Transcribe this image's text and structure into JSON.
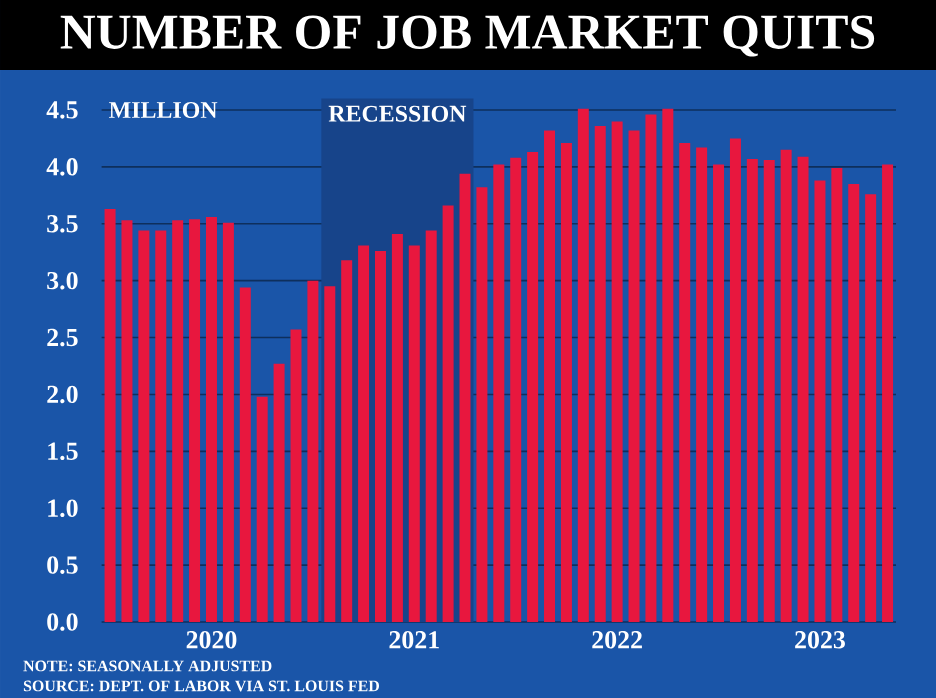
{
  "chart_data": {
    "type": "bar",
    "title": "NUMBER OF JOB MARKET QUITS",
    "ylabel": "MILLION",
    "x": [
      "2019-07",
      "2019-08",
      "2019-09",
      "2019-10",
      "2019-11",
      "2019-12",
      "2020-01",
      "2020-02",
      "2020-03",
      "2020-04",
      "2020-05",
      "2020-06",
      "2020-07",
      "2020-08",
      "2020-09",
      "2020-10",
      "2020-11",
      "2020-12",
      "2021-01",
      "2021-02",
      "2021-03",
      "2021-04",
      "2021-05",
      "2021-06",
      "2021-07",
      "2021-08",
      "2021-09",
      "2021-10",
      "2021-11",
      "2021-12",
      "2022-01",
      "2022-02",
      "2022-03",
      "2022-04",
      "2022-05",
      "2022-06",
      "2022-07",
      "2022-08",
      "2022-09",
      "2022-10",
      "2022-11",
      "2022-12",
      "2023-01",
      "2023-02",
      "2023-03",
      "2023-04",
      "2023-05"
    ],
    "values": [
      3.63,
      3.53,
      3.44,
      3.44,
      3.53,
      3.54,
      3.56,
      3.51,
      2.94,
      1.98,
      2.27,
      2.57,
      3.0,
      2.95,
      3.18,
      3.31,
      3.26,
      3.41,
      3.31,
      3.44,
      3.66,
      3.94,
      3.82,
      4.02,
      4.08,
      4.13,
      4.32,
      4.21,
      4.51,
      4.36,
      4.4,
      4.32,
      4.46,
      4.51,
      4.21,
      4.17,
      4.02,
      4.25,
      4.07,
      4.06,
      4.15,
      4.09,
      3.88,
      3.99,
      3.85,
      3.76,
      4.02
    ],
    "color": "#e8173e",
    "xlim": [
      "2019-06-16",
      "2023-05-16"
    ],
    "xticks": [
      {
        "value": "2020-01",
        "label": "2020"
      },
      {
        "value": "2021-01",
        "label": "2021"
      },
      {
        "value": "2022-01",
        "label": "2022"
      },
      {
        "value": "2023-01",
        "label": "2023"
      }
    ],
    "ylim": [
      0,
      4.6
    ],
    "yticks": [
      {
        "value": 0,
        "label": "0.0"
      },
      0.5,
      {
        "value": 1,
        "label": "1.0"
      },
      1.5,
      {
        "value": 2,
        "label": "2.0"
      },
      2.5,
      {
        "value": 3,
        "label": "3.0"
      },
      3.5,
      {
        "value": 4,
        "label": "4.0"
      },
      4.5
    ],
    "grid": "y",
    "bands": [
      {
        "axis": "x",
        "from": "2020-07-16",
        "to": "2021-04-16",
        "label": "RECESSION",
        "color": "#17448a"
      }
    ],
    "annotations": [
      "NOTE: SEASONALLY ADJUSTED",
      "SOURCE: DEPT. OF LABOR VIA ST. LOUIS FED"
    ]
  }
}
